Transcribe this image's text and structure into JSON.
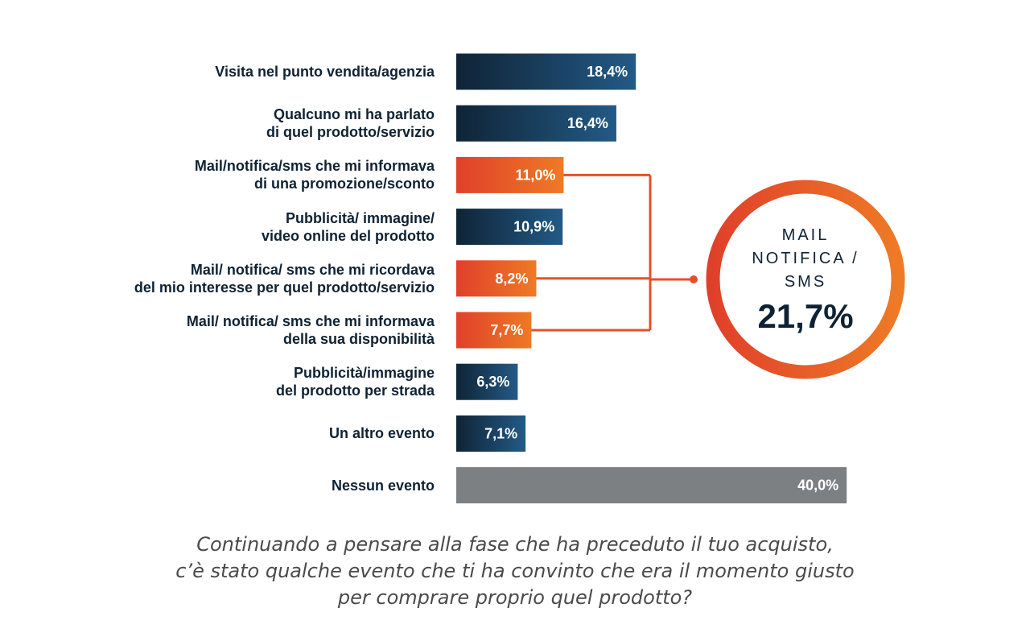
{
  "chart_data": {
    "type": "bar",
    "orientation": "horizontal",
    "categories": [
      "Visita nel punto vendita/agenzia",
      "Qualcuno mi ha parlato\ndi quel prodotto/servizio",
      "Mail/notifica/sms che mi informava\ndi una promozione/sconto",
      "Pubblicità/ immagine/\nvideo online del prodotto",
      "Mail/ notifica/ sms che mi ricordava\ndel mio interesse per quel prodotto/servizio",
      "Mail/ notifica/ sms che mi informava\ndella sua disponibilità",
      "Pubblicità/immagine\ndel prodotto per strada",
      "Un altro evento",
      "Nessun evento"
    ],
    "values": [
      18.4,
      16.4,
      11.0,
      10.9,
      8.2,
      7.7,
      6.3,
      7.1,
      40.0
    ],
    "value_labels": [
      "18,4%",
      "16,4%",
      "11,0%",
      "10,9%",
      "8,2%",
      "7,7%",
      "6,3%",
      "7,1%",
      "40,0%"
    ],
    "bar_styles": [
      "navy",
      "navy",
      "orange",
      "navy",
      "orange",
      "orange",
      "navy",
      "navy",
      "gray"
    ],
    "xlim": [
      0,
      40
    ],
    "grid": false,
    "highlight": {
      "label": "MAIL\nNOTIFICA /\nSMS",
      "value": "21,7%",
      "bars": [
        2,
        4,
        5
      ]
    },
    "question": "Continuando a pensare alla fase che ha preceduto il tuo acquisto,\nc’è stato qualche evento che ti ha convinto che era il momento giusto\nper comprare proprio quel prodotto?"
  },
  "colors": {
    "navy_dark": "#0f2436",
    "navy_light": "#235a86",
    "orange_start": "#e0402a",
    "orange_end": "#ee7a26",
    "gray": "#7d8083",
    "text": "#0f2233"
  }
}
